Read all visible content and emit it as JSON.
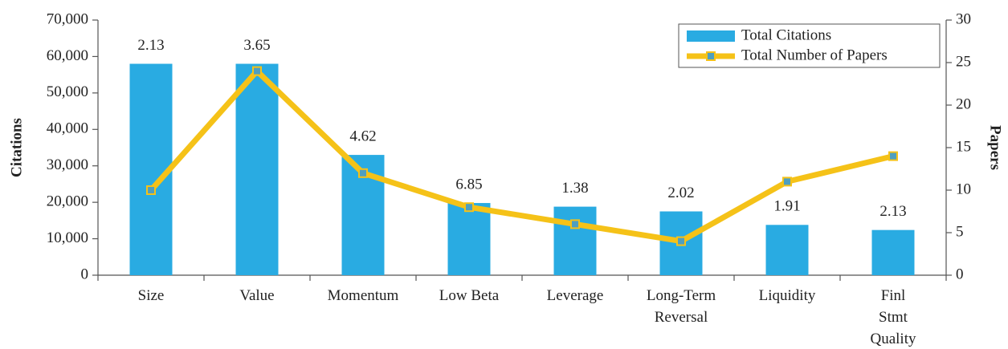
{
  "chart_data": {
    "type": "bar_line",
    "categories": [
      "Size",
      "Value",
      "Momentum",
      "Low Beta",
      "Leverage",
      "Long-Term\nReversal",
      "Liquidity",
      "Finl\nStmt\nQuality"
    ],
    "series": [
      {
        "name": "Total Citations",
        "type": "bar",
        "color": "#29abe2",
        "values": [
          58000,
          58000,
          33000,
          19800,
          18800,
          17500,
          13800,
          12400
        ]
      },
      {
        "name": "Total Number of Papers",
        "type": "line",
        "axis": "y2",
        "color": "#f5c218",
        "marker_color": "#4f9fbf",
        "values": [
          10,
          24,
          12,
          8,
          6,
          4,
          11,
          14
        ]
      }
    ],
    "annotations": [
      2.13,
      3.65,
      4.62,
      6.85,
      1.38,
      2.02,
      1.91,
      2.13
    ],
    "ylabel": "Citations",
    "y2label": "Papers",
    "ylim": [
      0,
      70000
    ],
    "yticks": [
      0,
      {
        "value": 10000,
        "label": "10,000"
      },
      {
        "value": 20000,
        "label": "20,000"
      },
      {
        "value": 30000,
        "label": "30,000"
      },
      {
        "value": 40000,
        "label": "40,000"
      },
      {
        "value": 50000,
        "label": "50,000"
      },
      {
        "value": 60000,
        "label": "60,000"
      },
      {
        "value": 70000,
        "label": "70,000"
      }
    ],
    "y2lim": [
      0,
      30
    ],
    "y2ticks": [
      0,
      5,
      10,
      15,
      20,
      25,
      30
    ],
    "legend": "upper right",
    "grid": false
  }
}
